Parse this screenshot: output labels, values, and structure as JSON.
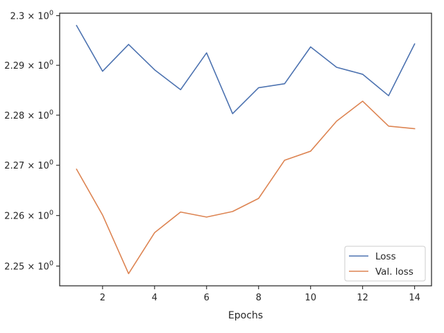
{
  "chart_data": {
    "type": "line",
    "title": "",
    "xlabel": "Epochs",
    "ylabel": "",
    "x": [
      1,
      2,
      3,
      4,
      5,
      6,
      7,
      8,
      9,
      10,
      11,
      12,
      13,
      14
    ],
    "series": [
      {
        "name": "Loss",
        "color": "#4c72b0",
        "values": [
          2.298,
          2.2888,
          2.2942,
          2.2891,
          2.2851,
          2.2925,
          2.2803,
          2.2855,
          2.2863,
          2.2937,
          2.2896,
          2.2882,
          2.2839,
          2.2943
        ]
      },
      {
        "name": "Val. loss",
        "color": "#dd8452",
        "values": [
          2.2692,
          2.2601,
          2.2485,
          2.2566,
          2.2607,
          2.2597,
          2.2608,
          2.2634,
          2.271,
          2.2728,
          2.2788,
          2.2828,
          2.2778,
          2.2773
        ]
      }
    ],
    "xlim": [
      0.35,
      14.65
    ],
    "ylim": [
      2.2461,
      2.3005
    ],
    "xticks": [
      2,
      4,
      6,
      8,
      10,
      12,
      14
    ],
    "xtick_labels": [
      "2",
      "4",
      "6",
      "8",
      "10",
      "12",
      "14"
    ],
    "yticks": [
      2.25,
      2.26,
      2.27,
      2.28,
      2.29,
      2.3
    ],
    "ytick_labels": [
      "2.25",
      "2.26",
      "2.27",
      "2.28",
      "2.29",
      "2.3"
    ],
    "ytick_suffix": "× 10",
    "ytick_exponent": "0",
    "yscale": "log",
    "grid": false,
    "legend_position": "lower-right"
  }
}
